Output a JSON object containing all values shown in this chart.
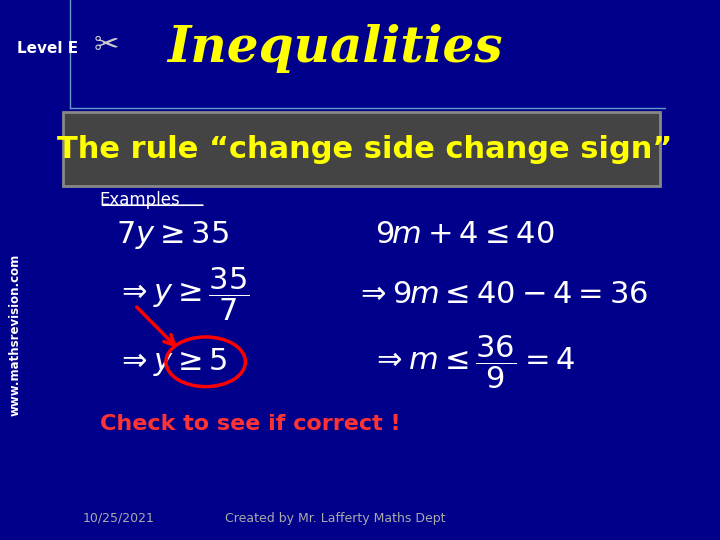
{
  "bg_color": "#00008B",
  "title_text": "Inequalities",
  "title_color": "#FFFF00",
  "title_fontsize": 36,
  "level_text": "Level E",
  "level_color": "#FFFFFF",
  "website_text": "www.mathsrevision.com",
  "website_color": "#FFFFFF",
  "rule_box_bg": "#444444",
  "rule_box_edge": "#888888",
  "rule_text": "The rule “change side change sign”",
  "rule_color": "#FFFF00",
  "rule_fontsize": 22,
  "examples_label": "Examples",
  "examples_color": "#FFFFFF",
  "math_color": "#FFFFFF",
  "math_fontsize": 22,
  "check_text": "Check to see if correct !",
  "check_color": "#FF3333",
  "check_fontsize": 16,
  "date_text": "10/25/2021",
  "credit_text": "Created by Mr. Lafferty Maths Dept",
  "footer_color": "#AAAAAA",
  "footer_fontsize": 9,
  "circle_color": "#FF0000",
  "arrow_color": "#FF0000"
}
